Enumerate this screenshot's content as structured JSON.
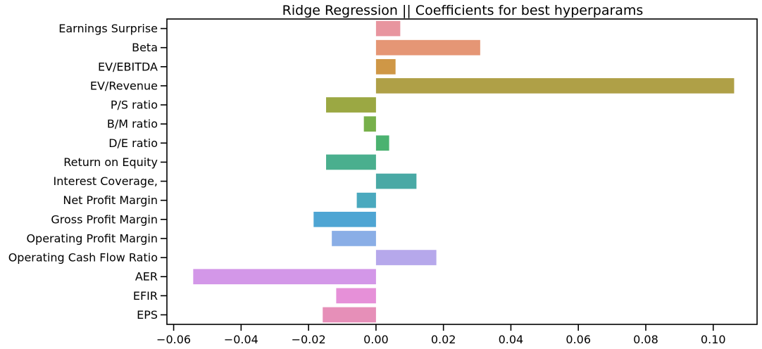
{
  "chart_data": {
    "type": "bar",
    "orientation": "horizontal",
    "title": "Ridge Regression || Coefficients for best hyperparams",
    "xlabel": "",
    "ylabel": "",
    "xlim": [
      -0.062,
      0.113
    ],
    "xticks": [
      -0.06,
      -0.04,
      -0.02,
      0.0,
      0.02,
      0.04,
      0.06,
      0.08,
      0.1
    ],
    "xtick_labels": [
      "−0.06",
      "−0.04",
      "−0.02",
      "0.00",
      "0.02",
      "0.04",
      "0.06",
      "0.08",
      "0.10"
    ],
    "grid": false,
    "categories": [
      "Earnings Surprise",
      "Beta",
      "EV/EBITDA",
      "EV/Revenue",
      "P/S ratio",
      "B/M ratio",
      "D/E ratio",
      "Return on Equity",
      "Interest Coverage,",
      "Net Profit Margin",
      "Gross Profit Margin",
      "Operating Profit Margin",
      "Operating Cash Flow Ratio",
      "AER",
      "EFIR",
      "EPS"
    ],
    "values": [
      0.0072,
      0.0309,
      0.0058,
      0.1062,
      -0.0148,
      -0.0036,
      0.0039,
      -0.0148,
      0.012,
      -0.0057,
      -0.0185,
      -0.0131,
      0.0179,
      -0.0542,
      -0.0118,
      -0.0158
    ],
    "colors": [
      "#e8959f",
      "#e59675",
      "#cf9746",
      "#afa047",
      "#9ba843",
      "#77b04a",
      "#4bb270",
      "#4aaf8e",
      "#49a9a5",
      "#4aa9be",
      "#4ea5d3",
      "#8aaee6",
      "#b6a8eb",
      "#d397e8",
      "#e690d8",
      "#e68fb8"
    ]
  }
}
